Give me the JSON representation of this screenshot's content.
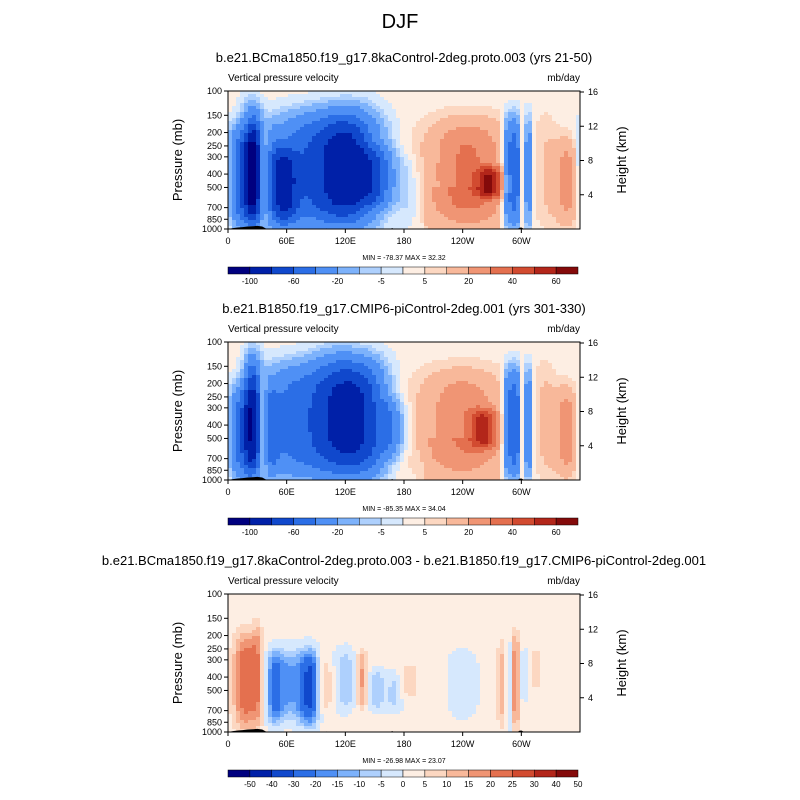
{
  "figure": {
    "title": "DJF"
  },
  "colors": {
    "absolute_scale": [
      "#00007f",
      "#0020a8",
      "#1048cc",
      "#2b6ee6",
      "#4f90f5",
      "#7db2fb",
      "#aed0fd",
      "#d6e8fd",
      "#fdeee3",
      "#fcd7c1",
      "#f8b89a",
      "#f09574",
      "#e4704f",
      "#d24b30",
      "#b3261a",
      "#840a0a"
    ],
    "difference_scale": [
      "#00007f",
      "#0020a8",
      "#1048cc",
      "#2b6ee6",
      "#4f90f5",
      "#7db2fb",
      "#aed0fd",
      "#d6e8fd",
      "#fdeee3",
      "#fcd7c1",
      "#f8b89a",
      "#f09574",
      "#e4704f",
      "#d24b30",
      "#b3261a",
      "#840a0a"
    ],
    "terrain": "#000000"
  },
  "chart_data": [
    {
      "type": "heatmap",
      "title": "b.e21.BCma1850.f19_g17.8kaControl-2deg.proto.003 (yrs 21-50)",
      "left_label": "Vertical pressure velocity",
      "right_label": "mb/day",
      "ylabel": "Pressure (mb)",
      "y2label": "Height (km)",
      "x_ticks": [
        "0",
        "60E",
        "120E",
        "180",
        "120W",
        "60W"
      ],
      "x_tick_lon": [
        0,
        60,
        120,
        180,
        240,
        300
      ],
      "xlim": [
        0,
        360
      ],
      "y_ticks": [
        "100",
        "150",
        "200",
        "250",
        "300",
        "400",
        "500",
        "700",
        "850",
        "1000"
      ],
      "y_tick_values": [
        100,
        150,
        200,
        250,
        300,
        400,
        500,
        700,
        850,
        1000
      ],
      "ylim": [
        100,
        1000
      ],
      "y_log": true,
      "y2_ticks": [
        "16",
        "12",
        "8",
        "4"
      ],
      "y2_tick_km": [
        16,
        12,
        8,
        4
      ],
      "stats": "MIN = -78.37   MAX =  32.32",
      "colorbar_ticks": [
        "-100",
        "-60",
        "-20",
        "-5",
        "5",
        "20",
        "40",
        "60"
      ],
      "colorbar_tick_index": [
        1,
        3,
        5,
        7,
        9,
        11,
        13,
        15
      ],
      "features": [
        {
          "lon": 13,
          "p0": 180,
          "p1": 1000,
          "w": 12,
          "v": -60
        },
        {
          "lon": 22,
          "p0": 110,
          "p1": 1000,
          "w": 7,
          "v": -20
        },
        {
          "lon": 27,
          "p0": 140,
          "p1": 1000,
          "w": 6,
          "v": -60
        },
        {
          "lon": 36,
          "p0": 180,
          "p1": 880,
          "w": 2.5,
          "v": 30
        },
        {
          "lon": 48,
          "p0": 180,
          "p1": 1000,
          "w": 5,
          "v": -20
        },
        {
          "lon": 58,
          "p0": 250,
          "p1": 1000,
          "w": 9,
          "v": -60
        },
        {
          "lon": 90,
          "p0": 140,
          "p1": 1000,
          "w": 32,
          "v": -60
        },
        {
          "lon": 125,
          "p0": 130,
          "p1": 1000,
          "w": 20,
          "v": -60
        },
        {
          "lon": 150,
          "p0": 250,
          "p1": 700,
          "w": 14,
          "v": -40
        },
        {
          "lon": 185,
          "p0": 300,
          "p1": 1000,
          "w": 8,
          "v": -8
        },
        {
          "lon": 245,
          "p0": 150,
          "p1": 1000,
          "w": 30,
          "v": 30
        },
        {
          "lon": 268,
          "p0": 350,
          "p1": 600,
          "w": 10,
          "v": 38
        },
        {
          "lon": 287,
          "p0": 150,
          "p1": 1000,
          "w": 4,
          "v": -55
        },
        {
          "lon": 295,
          "p0": 150,
          "p1": 1000,
          "w": 3,
          "v": -60
        },
        {
          "lon": 300,
          "p0": 140,
          "p1": 1000,
          "w": 2.5,
          "v": 12
        },
        {
          "lon": 307,
          "p0": 150,
          "p1": 1000,
          "w": 3,
          "v": -40
        },
        {
          "lon": 325,
          "p0": 130,
          "p1": 1000,
          "w": 8,
          "v": 6
        },
        {
          "lon": 352,
          "p0": 200,
          "p1": 1000,
          "w": 12,
          "v": 30
        }
      ],
      "terrain": [
        [
          0,
          1000
        ],
        [
          5,
          985
        ],
        [
          10,
          975
        ],
        [
          15,
          970
        ],
        [
          20,
          960
        ],
        [
          25,
          955
        ],
        [
          30,
          950
        ],
        [
          35,
          960
        ],
        [
          38,
          985
        ],
        [
          40,
          1000
        ],
        [
          100,
          1000
        ],
        [
          101,
          990
        ],
        [
          103,
          1000
        ],
        [
          165,
          1000
        ],
        [
          168,
          985
        ],
        [
          170,
          1000
        ],
        [
          296,
          1000
        ],
        [
          298,
          980
        ],
        [
          300,
          975
        ],
        [
          303,
          1000
        ],
        [
          360,
          1000
        ]
      ]
    },
    {
      "type": "heatmap",
      "title": "b.e21.B1850.f19_g17.CMIP6-piControl-2deg.001 (yrs 301-330)",
      "left_label": "Vertical pressure velocity",
      "right_label": "mb/day",
      "ylabel": "Pressure (mb)",
      "y2label": "Height (km)",
      "x_ticks": [
        "0",
        "60E",
        "120E",
        "180",
        "120W",
        "60W"
      ],
      "x_tick_lon": [
        0,
        60,
        120,
        180,
        240,
        300
      ],
      "xlim": [
        0,
        360
      ],
      "y_ticks": [
        "100",
        "150",
        "200",
        "250",
        "300",
        "400",
        "500",
        "700",
        "850",
        "1000"
      ],
      "y_tick_values": [
        100,
        150,
        200,
        250,
        300,
        400,
        500,
        700,
        850,
        1000
      ],
      "ylim": [
        100,
        1000
      ],
      "y_log": true,
      "y2_ticks": [
        "16",
        "12",
        "8",
        "4"
      ],
      "y2_tick_km": [
        16,
        12,
        8,
        4
      ],
      "stats": "MIN = -85.35   MAX =  34.04",
      "colorbar_ticks": [
        "-100",
        "-60",
        "-20",
        "-5",
        "5",
        "20",
        "40",
        "60"
      ],
      "colorbar_tick_index": [
        1,
        3,
        5,
        7,
        9,
        11,
        13,
        15
      ],
      "features": [
        {
          "lon": 12,
          "p0": 200,
          "p1": 1000,
          "w": 12,
          "v": -55
        },
        {
          "lon": 25,
          "p0": 120,
          "p1": 1000,
          "w": 6,
          "v": -65
        },
        {
          "lon": 36,
          "p0": 180,
          "p1": 880,
          "w": 2.5,
          "v": 32
        },
        {
          "lon": 45,
          "p0": 200,
          "p1": 1000,
          "w": 5,
          "v": -25
        },
        {
          "lon": 70,
          "p0": 140,
          "p1": 1000,
          "w": 25,
          "v": -50
        },
        {
          "lon": 112,
          "p0": 120,
          "p1": 1000,
          "w": 18,
          "v": -65
        },
        {
          "lon": 140,
          "p0": 130,
          "p1": 1000,
          "w": 16,
          "v": -60
        },
        {
          "lon": 165,
          "p0": 250,
          "p1": 700,
          "w": 10,
          "v": -30
        },
        {
          "lon": 240,
          "p0": 150,
          "p1": 1000,
          "w": 32,
          "v": 25
        },
        {
          "lon": 262,
          "p0": 300,
          "p1": 600,
          "w": 10,
          "v": 34
        },
        {
          "lon": 287,
          "p0": 150,
          "p1": 1000,
          "w": 4,
          "v": -55
        },
        {
          "lon": 295,
          "p0": 150,
          "p1": 1000,
          "w": 3,
          "v": -60
        },
        {
          "lon": 300,
          "p0": 140,
          "p1": 1000,
          "w": 2.5,
          "v": 12
        },
        {
          "lon": 307,
          "p0": 150,
          "p1": 1000,
          "w": 3,
          "v": -45
        },
        {
          "lon": 325,
          "p0": 130,
          "p1": 1000,
          "w": 8,
          "v": 8
        },
        {
          "lon": 352,
          "p0": 200,
          "p1": 1000,
          "w": 12,
          "v": 32
        }
      ],
      "terrain": [
        [
          0,
          1000
        ],
        [
          5,
          985
        ],
        [
          10,
          975
        ],
        [
          15,
          970
        ],
        [
          20,
          960
        ],
        [
          25,
          955
        ],
        [
          30,
          950
        ],
        [
          35,
          960
        ],
        [
          38,
          985
        ],
        [
          40,
          1000
        ],
        [
          100,
          1000
        ],
        [
          101,
          990
        ],
        [
          103,
          1000
        ],
        [
          165,
          1000
        ],
        [
          168,
          985
        ],
        [
          170,
          1000
        ],
        [
          296,
          1000
        ],
        [
          298,
          980
        ],
        [
          300,
          975
        ],
        [
          303,
          1000
        ],
        [
          360,
          1000
        ]
      ]
    },
    {
      "type": "heatmap",
      "title": "b.e21.BCma1850.f19_g17.8kaControl-2deg.proto.003 - b.e21.B1850.f19_g17.CMIP6-piControl-2deg.001",
      "left_label": "Vertical pressure velocity",
      "right_label": "mb/day",
      "ylabel": "Pressure (mb)",
      "y2label": "Height (km)",
      "x_ticks": [
        "0",
        "60E",
        "120E",
        "180",
        "120W",
        "60W"
      ],
      "x_tick_lon": [
        0,
        60,
        120,
        180,
        240,
        300
      ],
      "xlim": [
        0,
        360
      ],
      "y_ticks": [
        "100",
        "150",
        "200",
        "250",
        "300",
        "400",
        "500",
        "700",
        "850",
        "1000"
      ],
      "y_tick_values": [
        100,
        150,
        200,
        250,
        300,
        400,
        500,
        700,
        850,
        1000
      ],
      "ylim": [
        100,
        1000
      ],
      "y_log": true,
      "y2_ticks": [
        "16",
        "12",
        "8",
        "4"
      ],
      "y2_tick_km": [
        16,
        12,
        8,
        4
      ],
      "stats": "MIN = -26.98   MAX =  23.07",
      "colorbar_ticks": [
        "-50",
        "-40",
        "-30",
        "-20",
        "-15",
        "-10",
        "-5",
        "0",
        "5",
        "10",
        "15",
        "20",
        "25",
        "30",
        "40",
        "50"
      ],
      "colorbar_tick_index": [
        1,
        2,
        3,
        4,
        5,
        6,
        7,
        8,
        9,
        10,
        11,
        12,
        13,
        14,
        15,
        16
      ],
      "features": [
        {
          "lon": 18,
          "p0": 180,
          "p1": 1000,
          "w": 9,
          "v": 23
        },
        {
          "lon": 30,
          "p0": 150,
          "p1": 1000,
          "w": 4,
          "v": 12
        },
        {
          "lon": 48,
          "p0": 250,
          "p1": 900,
          "w": 6,
          "v": -25
        },
        {
          "lon": 62,
          "p0": 250,
          "p1": 800,
          "w": 6,
          "v": -15
        },
        {
          "lon": 76,
          "p0": 250,
          "p1": 900,
          "w": 6,
          "v": -20
        },
        {
          "lon": 85,
          "p0": 250,
          "p1": 900,
          "w": 5,
          "v": -27
        },
        {
          "lon": 100,
          "p0": 300,
          "p1": 700,
          "w": 5,
          "v": 8
        },
        {
          "lon": 120,
          "p0": 250,
          "p1": 700,
          "w": 7,
          "v": -10
        },
        {
          "lon": 137,
          "p0": 250,
          "p1": 700,
          "w": 4,
          "v": 15
        },
        {
          "lon": 152,
          "p0": 350,
          "p1": 700,
          "w": 6,
          "v": -10
        },
        {
          "lon": 170,
          "p0": 350,
          "p1": 700,
          "w": 6,
          "v": -8
        },
        {
          "lon": 185,
          "p0": 300,
          "p1": 600,
          "w": 10,
          "v": 6
        },
        {
          "lon": 240,
          "p0": 250,
          "p1": 800,
          "w": 10,
          "v": -4
        },
        {
          "lon": 281,
          "p0": 200,
          "p1": 1000,
          "w": 4,
          "v": 12
        },
        {
          "lon": 287,
          "p0": 200,
          "p1": 1000,
          "w": 3,
          "v": -10
        },
        {
          "lon": 294,
          "p0": 180,
          "p1": 1000,
          "w": 3,
          "v": 20
        },
        {
          "lon": 301,
          "p0": 250,
          "p1": 600,
          "w": 4,
          "v": -6
        },
        {
          "lon": 315,
          "p0": 250,
          "p1": 500,
          "w": 4,
          "v": 10
        }
      ],
      "terrain": [
        [
          0,
          1000
        ],
        [
          5,
          985
        ],
        [
          10,
          975
        ],
        [
          15,
          970
        ],
        [
          20,
          960
        ],
        [
          25,
          955
        ],
        [
          30,
          950
        ],
        [
          35,
          960
        ],
        [
          38,
          985
        ],
        [
          40,
          1000
        ],
        [
          100,
          1000
        ],
        [
          101,
          990
        ],
        [
          103,
          1000
        ],
        [
          165,
          1000
        ],
        [
          168,
          985
        ],
        [
          170,
          1000
        ],
        [
          296,
          1000
        ],
        [
          298,
          980
        ],
        [
          300,
          975
        ],
        [
          303,
          1000
        ],
        [
          360,
          1000
        ]
      ]
    }
  ]
}
